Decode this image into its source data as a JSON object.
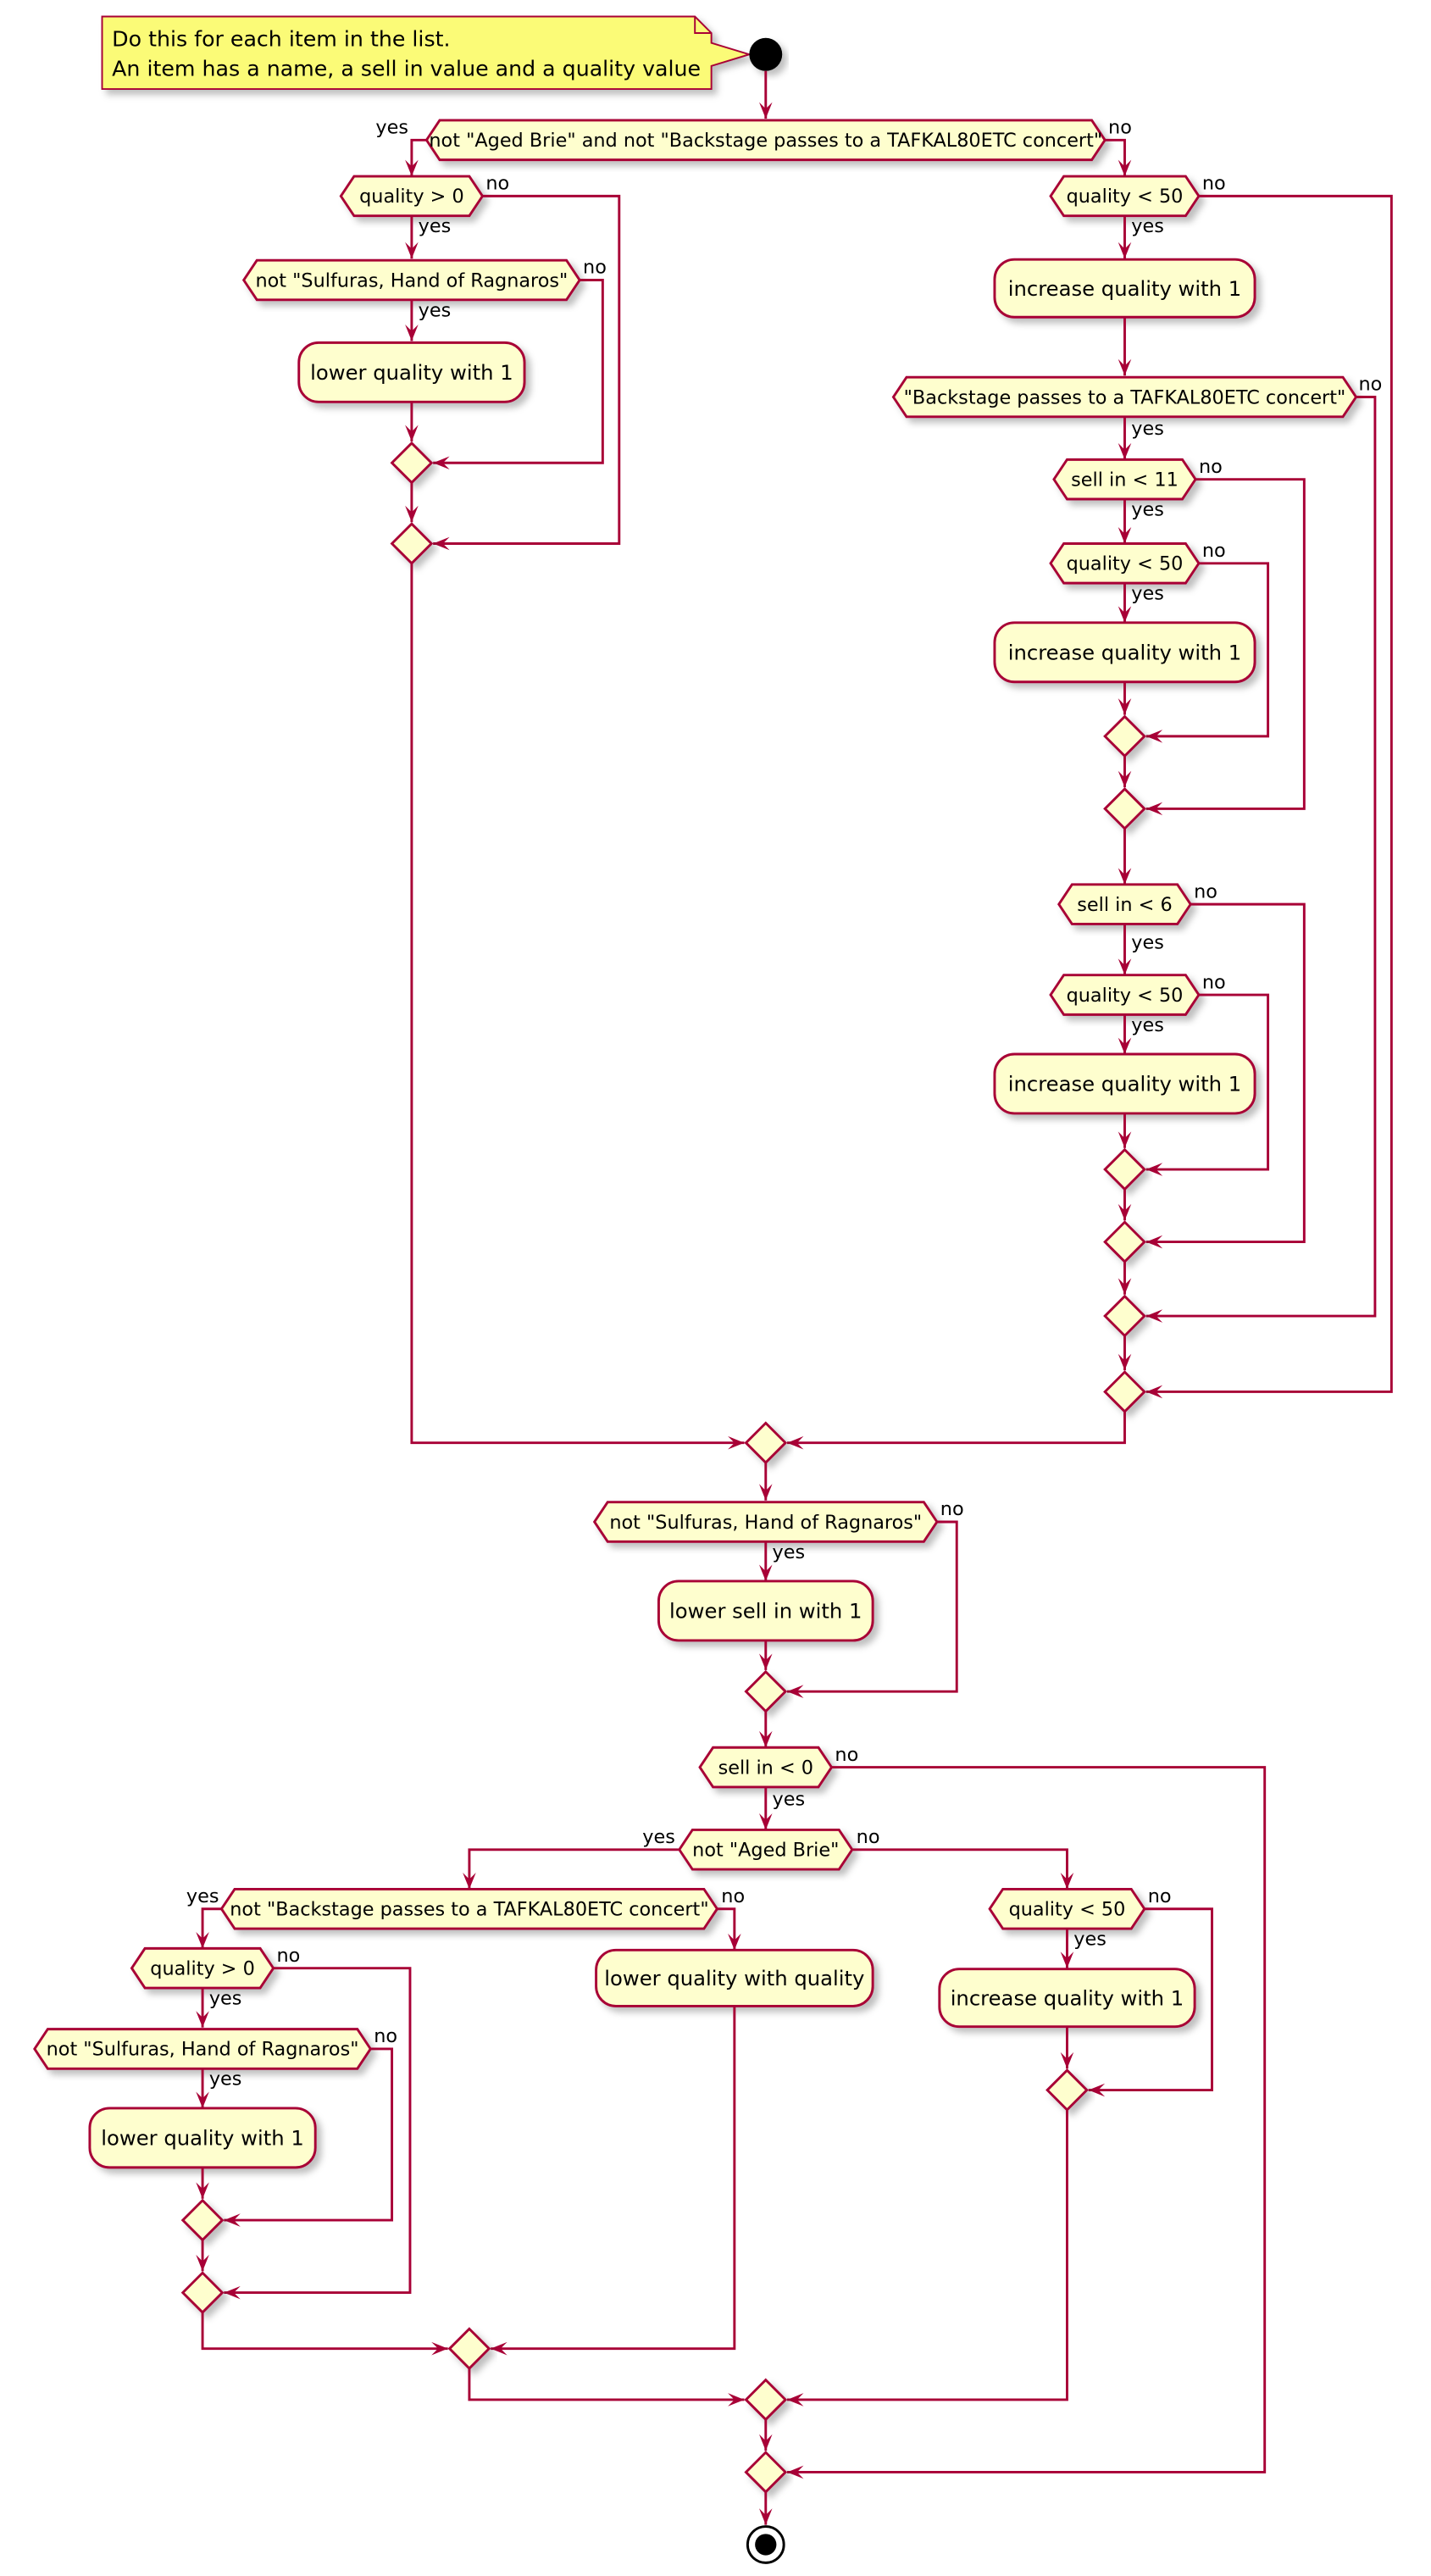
{
  "colors": {
    "stroke": "#A80036",
    "fill": "#FEFECE",
    "note_fill": "#FBFB77",
    "start_stop": "#000000"
  },
  "note": {
    "line1": "Do this for each item in the list.",
    "line2": "An item has a name, a sell in value and a quality value"
  },
  "labels": {
    "yes": "yes",
    "no": "no"
  },
  "nodes": {
    "d1": "not \"Aged Brie\" and not \"Backstage passes to a TAFKAL80ETC concert\"",
    "d2": "quality > 0",
    "d3": "not \"Sulfuras, Hand of Ragnaros\"",
    "a1": "lower quality with 1",
    "d4": "quality < 50",
    "a2": "increase quality with 1",
    "d5": "\"Backstage passes to a TAFKAL80ETC concert\"",
    "d6": "sell in < 11",
    "d7": "quality < 50",
    "a3": "increase quality with 1",
    "d8": "sell in < 6",
    "d9": "quality < 50",
    "a4": "increase quality with 1",
    "d10": "not \"Sulfuras, Hand of Ragnaros\"",
    "a5": "lower sell in with 1",
    "d11": "sell in < 0",
    "d12": "not \"Aged Brie\"",
    "d13": "not \"Backstage passes to a TAFKAL80ETC concert\"",
    "d14": "quality > 0",
    "d15": "not \"Sulfuras, Hand of Ragnaros\"",
    "a6": "lower quality with 1",
    "a7": "lower quality with quality",
    "d16": "quality < 50",
    "a8": "increase quality with 1"
  }
}
